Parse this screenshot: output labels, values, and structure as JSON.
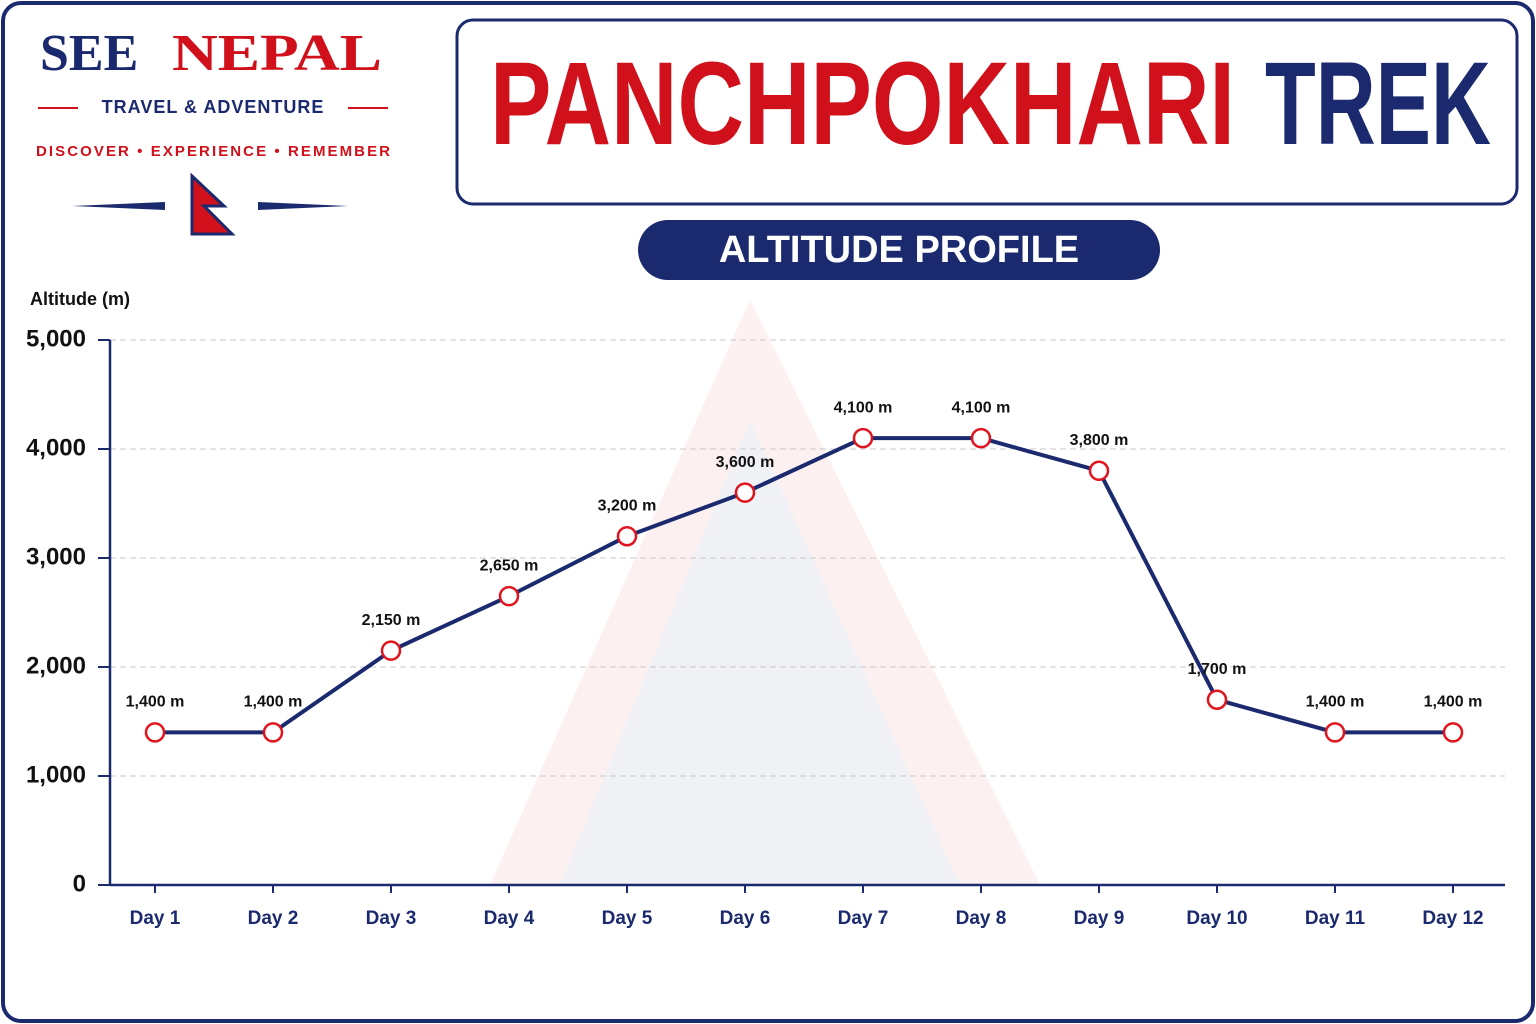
{
  "brand": {
    "name_first": "SEE",
    "name_second": "NEPAL",
    "tagline": "TRAVEL & ADVENTURE",
    "motto": "DISCOVER • EXPERIENCE • REMEMBER"
  },
  "chart_data": {
    "type": "line",
    "title": {
      "main": "PANCHPOKHARI",
      "accent": "TREK"
    },
    "subtitle": "ALTITUDE PROFILE",
    "y_label": "Altitude (m)",
    "categories": [
      "Day 1",
      "Day 2",
      "Day 3",
      "Day 4",
      "Day 5",
      "Day 6",
      "Day 7",
      "Day 8",
      "Day 9",
      "Day 10",
      "Day 11",
      "Day 12"
    ],
    "values": [
      1400,
      1400,
      2150,
      2650,
      3200,
      3600,
      4100,
      4100,
      3800,
      1700,
      1400,
      1400
    ],
    "value_labels": [
      "1,400 m",
      "1,400 m",
      "2,150 m",
      "2,650 m",
      "3,200 m",
      "3,600 m",
      "4,100 m",
      "4,100 m",
      "3,800 m",
      "1,700 m",
      "1,400 m",
      "1,400 m"
    ],
    "color": "#1b2a6e",
    "marker_color": "#e0141e",
    "ylim": [
      0,
      5000
    ],
    "yticks": [
      0,
      {
        "value": 1000,
        "label": "1,000"
      },
      {
        "value": 2000,
        "label": "2,000"
      },
      {
        "value": 3000,
        "label": "3,000"
      },
      {
        "value": 4000,
        "label": "4,000"
      },
      {
        "value": 5000,
        "label": "5,000"
      }
    ],
    "grid": true
  }
}
